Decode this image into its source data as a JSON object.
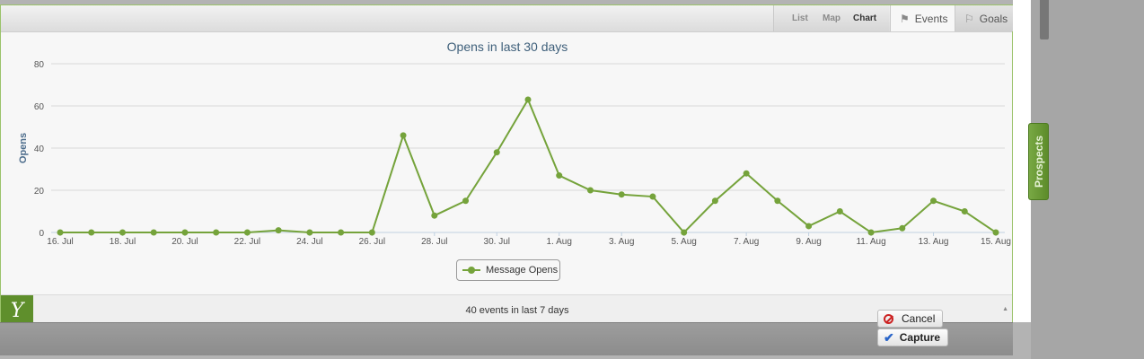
{
  "view_tabs": {
    "list": "List",
    "map": "Map",
    "chart": "Chart"
  },
  "side_tabs": {
    "events": "Events",
    "goals": "Goals"
  },
  "chart_data": {
    "type": "line",
    "title": "Opens in last 30 days",
    "xlabel": "",
    "ylabel": "Opens",
    "ylim": [
      0,
      80
    ],
    "yticks": [
      0,
      20,
      40,
      60,
      80
    ],
    "x_tick_labels": [
      "16. Jul",
      "18. Jul",
      "20. Jul",
      "22. Jul",
      "24. Jul",
      "26. Jul",
      "28. Jul",
      "30. Jul",
      "1. Aug",
      "3. Aug",
      "5. Aug",
      "7. Aug",
      "9. Aug",
      "11. Aug",
      "13. Aug",
      "15. Aug"
    ],
    "categories": [
      "16. Jul",
      "17. Jul",
      "18. Jul",
      "19. Jul",
      "20. Jul",
      "21. Jul",
      "22. Jul",
      "23. Jul",
      "24. Jul",
      "25. Jul",
      "26. Jul",
      "27. Jul",
      "28. Jul",
      "29. Jul",
      "30. Jul",
      "31. Jul",
      "1. Aug",
      "2. Aug",
      "3. Aug",
      "4. Aug",
      "5. Aug",
      "6. Aug",
      "7. Aug",
      "8. Aug",
      "9. Aug",
      "10. Aug",
      "11. Aug",
      "12. Aug",
      "13. Aug",
      "14. Aug",
      "15. Aug"
    ],
    "series": [
      {
        "name": "Message Opens",
        "color": "#75a33b",
        "values": [
          0,
          0,
          0,
          0,
          0,
          0,
          0,
          1,
          0,
          0,
          0,
          46,
          8,
          15,
          38,
          63,
          27,
          20,
          18,
          17,
          0,
          15,
          28,
          15,
          3,
          10,
          0,
          2,
          15,
          10,
          0
        ]
      }
    ],
    "grid": true,
    "legend": "bottom-center"
  },
  "legend_label": "Message Opens",
  "footer": {
    "status": "40 events in last 7 days",
    "logo": "Y"
  },
  "prospects_tab": "Prospects",
  "buttons": {
    "cancel": "Cancel",
    "capture": "Capture"
  },
  "colors": {
    "accent_green": "#75a33b",
    "brand_green": "#5f8f2c"
  }
}
